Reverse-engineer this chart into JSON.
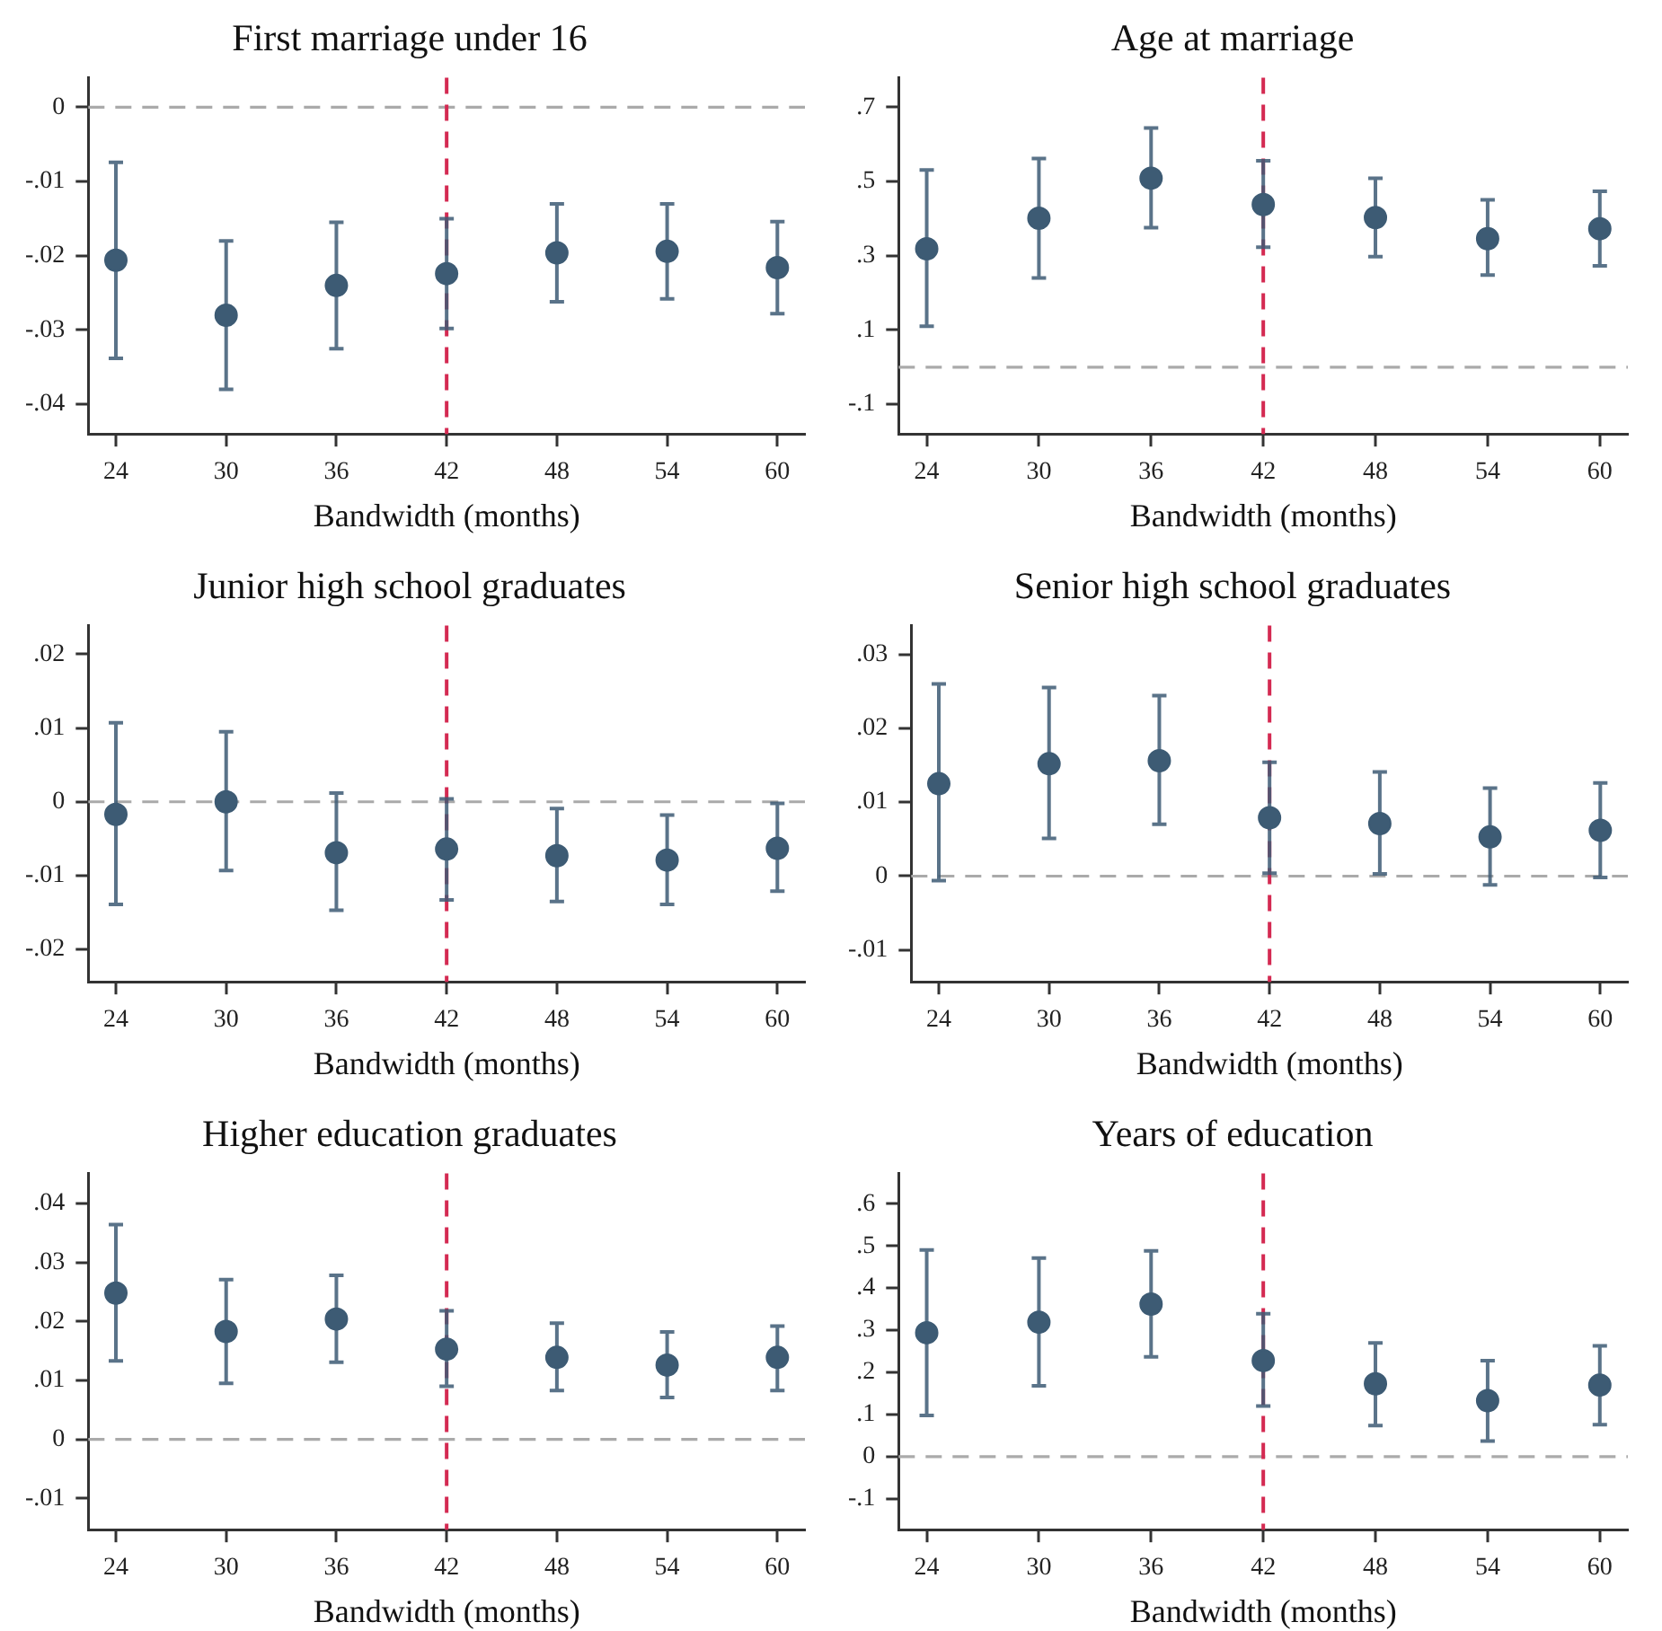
{
  "chart_data": [
    {
      "type": "scatter",
      "title": "First marriage under 16",
      "xlabel": "Bandwidth (months)",
      "marker": "circle",
      "x": [
        24,
        30,
        36,
        42,
        48,
        54,
        60
      ],
      "xlim": [
        22.5,
        61.5
      ],
      "xticks": [
        24,
        30,
        36,
        42,
        48,
        54,
        60
      ],
      "ylim": [
        -0.044,
        0.004
      ],
      "yticks": [
        {
          "value": -0.04,
          "label": "-.04"
        },
        {
          "value": -0.03,
          "label": "-.03"
        },
        {
          "value": -0.02,
          "label": "-.02"
        },
        {
          "value": -0.01,
          "label": "-.01"
        },
        {
          "value": 0,
          "label": "0"
        }
      ],
      "series": [
        {
          "color": "#3d5b74",
          "values": [
            -0.0206,
            -0.028,
            -0.024,
            -0.0224,
            -0.0196,
            -0.0194,
            -0.0216
          ],
          "errors": [
            [
              -0.0338,
              -0.0074
            ],
            [
              -0.038,
              -0.018
            ],
            [
              -0.0325,
              -0.0155
            ],
            [
              -0.0298,
              -0.015
            ],
            [
              -0.0262,
              -0.013
            ],
            [
              -0.0258,
              -0.013
            ],
            [
              -0.0278,
              -0.0154
            ]
          ]
        }
      ],
      "ref_lines": [
        {
          "axis": "y",
          "value": 0,
          "color": "#aaaaaa",
          "line_style": "dashed"
        },
        {
          "axis": "x",
          "value": 42,
          "color": "#d42a52",
          "line_style": "dashed"
        }
      ]
    },
    {
      "type": "scatter",
      "title": "Age at marriage",
      "xlabel": "Bandwidth (months)",
      "marker": "circle",
      "x": [
        24,
        30,
        36,
        42,
        48,
        54,
        60
      ],
      "xlim": [
        22.5,
        61.5
      ],
      "xticks": [
        24,
        30,
        36,
        42,
        48,
        54,
        60
      ],
      "ylim": [
        -0.18,
        0.78
      ],
      "yticks": [
        {
          "value": -0.1,
          "label": "-.1"
        },
        {
          "value": 0.1,
          "label": ".1"
        },
        {
          "value": 0.3,
          "label": ".3"
        },
        {
          "value": 0.5,
          "label": ".5"
        },
        {
          "value": 0.7,
          "label": ".7"
        }
      ],
      "series": [
        {
          "color": "#3d5b74",
          "values": [
            0.319,
            0.401,
            0.509,
            0.438,
            0.403,
            0.346,
            0.373
          ],
          "errors": [
            [
              0.11,
              0.531
            ],
            [
              0.24,
              0.562
            ],
            [
              0.376,
              0.644
            ],
            [
              0.323,
              0.556
            ],
            [
              0.298,
              0.509
            ],
            [
              0.248,
              0.451
            ],
            [
              0.273,
              0.474
            ]
          ]
        }
      ],
      "ref_lines": [
        {
          "axis": "y",
          "value": 0,
          "color": "#aaaaaa",
          "line_style": "dashed"
        },
        {
          "axis": "x",
          "value": 42,
          "color": "#d42a52",
          "line_style": "dashed"
        }
      ]
    },
    {
      "type": "scatter",
      "title": "Junior high school graduates",
      "xlabel": "Bandwidth (months)",
      "marker": "circle",
      "x": [
        24,
        30,
        36,
        42,
        48,
        54,
        60
      ],
      "xlim": [
        22.5,
        61.5
      ],
      "xticks": [
        24,
        30,
        36,
        42,
        48,
        54,
        60
      ],
      "ylim": [
        -0.0244,
        0.0239
      ],
      "yticks": [
        {
          "value": -0.02,
          "label": "-.02"
        },
        {
          "value": -0.01,
          "label": "-.01"
        },
        {
          "value": 0,
          "label": "0"
        },
        {
          "value": 0.01,
          "label": ".01"
        },
        {
          "value": 0.02,
          "label": ".02"
        }
      ],
      "series": [
        {
          "color": "#3d5b74",
          "values": [
            -0.0017,
            0,
            -0.0069,
            -0.0064,
            -0.0073,
            -0.0079,
            -0.0063
          ],
          "errors": [
            [
              -0.0139,
              0.0107
            ],
            [
              -0.0093,
              0.0095
            ],
            [
              -0.0147,
              0.0012
            ],
            [
              -0.0133,
              0.0004
            ],
            [
              -0.0135,
              -0.0009
            ],
            [
              -0.0139,
              -0.0018
            ],
            [
              -0.0121,
              -0.0002
            ]
          ]
        }
      ],
      "ref_lines": [
        {
          "axis": "y",
          "value": 0,
          "color": "#aaaaaa",
          "line_style": "dashed"
        },
        {
          "axis": "x",
          "value": 42,
          "color": "#d42a52",
          "line_style": "dashed"
        }
      ]
    },
    {
      "type": "scatter",
      "title": "Senior high school graduates",
      "xlabel": "Bandwidth (months)",
      "marker": "circle",
      "x": [
        24,
        30,
        36,
        42,
        48,
        54,
        60
      ],
      "xlim": [
        22.5,
        61.5
      ],
      "xticks": [
        24,
        30,
        36,
        42,
        48,
        54,
        60
      ],
      "ylim": [
        -0.0143,
        0.0339
      ],
      "yticks": [
        {
          "value": -0.01,
          "label": "-.01"
        },
        {
          "value": 0,
          "label": "0"
        },
        {
          "value": 0.01,
          "label": ".01"
        },
        {
          "value": 0.02,
          "label": ".02"
        },
        {
          "value": 0.03,
          "label": ".03"
        }
      ],
      "series": [
        {
          "color": "#3d5b74",
          "values": [
            0.0125,
            0.0152,
            0.0156,
            0.0079,
            0.0071,
            0.0053,
            0.0062
          ],
          "errors": [
            [
              -0.0006,
              0.026
            ],
            [
              0.0051,
              0.0255
            ],
            [
              0.007,
              0.0244
            ],
            [
              0.0004,
              0.0154
            ],
            [
              0.0003,
              0.0141
            ],
            [
              -0.0012,
              0.0119
            ],
            [
              -0.0002,
              0.0126
            ]
          ]
        }
      ],
      "ref_lines": [
        {
          "axis": "y",
          "value": 0,
          "color": "#aaaaaa",
          "line_style": "dashed"
        },
        {
          "axis": "x",
          "value": 42,
          "color": "#d42a52",
          "line_style": "dashed"
        }
      ]
    },
    {
      "type": "scatter",
      "title": "Higher education graduates",
      "xlabel": "Bandwidth (months)",
      "marker": "circle",
      "x": [
        24,
        30,
        36,
        42,
        48,
        54,
        60
      ],
      "xlim": [
        22.5,
        61.5
      ],
      "xticks": [
        24,
        30,
        36,
        42,
        48,
        54,
        60
      ],
      "ylim": [
        -0.0153,
        0.0451
      ],
      "yticks": [
        {
          "value": -0.01,
          "label": "-.01"
        },
        {
          "value": 0,
          "label": "0"
        },
        {
          "value": 0.01,
          "label": ".01"
        },
        {
          "value": 0.02,
          "label": ".02"
        },
        {
          "value": 0.03,
          "label": ".03"
        },
        {
          "value": 0.04,
          "label": ".04"
        }
      ],
      "series": [
        {
          "color": "#3d5b74",
          "values": [
            0.0248,
            0.0183,
            0.0204,
            0.0153,
            0.0139,
            0.0126,
            0.0139
          ],
          "errors": [
            [
              0.0133,
              0.0364
            ],
            [
              0.0095,
              0.0271
            ],
            [
              0.0131,
              0.0278
            ],
            [
              0.009,
              0.0218
            ],
            [
              0.0083,
              0.0197
            ],
            [
              0.0071,
              0.0182
            ],
            [
              0.0083,
              0.0192
            ]
          ]
        }
      ],
      "ref_lines": [
        {
          "axis": "y",
          "value": 0,
          "color": "#aaaaaa",
          "line_style": "dashed"
        },
        {
          "axis": "x",
          "value": 42,
          "color": "#d42a52",
          "line_style": "dashed"
        }
      ]
    },
    {
      "type": "scatter",
      "title": "Years of education",
      "xlabel": "Bandwidth (months)",
      "marker": "circle",
      "x": [
        24,
        30,
        36,
        42,
        48,
        54,
        60
      ],
      "xlim": [
        22.5,
        61.5
      ],
      "xticks": [
        24,
        30,
        36,
        42,
        48,
        54,
        60
      ],
      "ylim": [
        -0.173,
        0.672
      ],
      "yticks": [
        {
          "value": -0.1,
          "label": "-.1"
        },
        {
          "value": 0,
          "label": "0"
        },
        {
          "value": 0.1,
          "label": ".1"
        },
        {
          "value": 0.2,
          "label": ".2"
        },
        {
          "value": 0.3,
          "label": ".3"
        },
        {
          "value": 0.4,
          "label": ".4"
        },
        {
          "value": 0.5,
          "label": ".5"
        },
        {
          "value": 0.6,
          "label": ".6"
        }
      ],
      "series": [
        {
          "color": "#3d5b74",
          "values": [
            0.294,
            0.319,
            0.362,
            0.228,
            0.173,
            0.133,
            0.17
          ],
          "errors": [
            [
              0.098,
              0.49
            ],
            [
              0.168,
              0.471
            ],
            [
              0.237,
              0.488
            ],
            [
              0.12,
              0.339
            ],
            [
              0.074,
              0.27
            ],
            [
              0.037,
              0.228
            ],
            [
              0.076,
              0.263
            ]
          ]
        }
      ],
      "ref_lines": [
        {
          "axis": "y",
          "value": 0,
          "color": "#aaaaaa",
          "line_style": "dashed"
        },
        {
          "axis": "x",
          "value": 42,
          "color": "#d42a52",
          "line_style": "dashed"
        }
      ]
    }
  ]
}
